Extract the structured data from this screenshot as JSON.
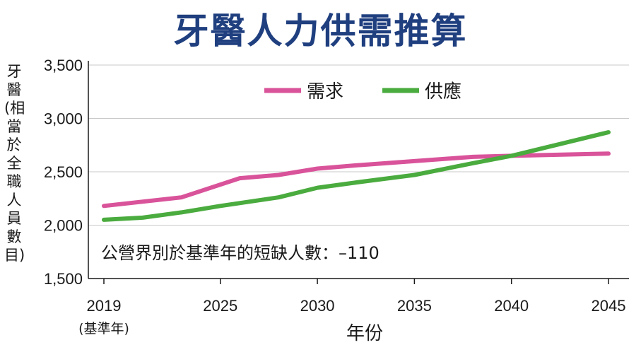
{
  "chart_data": {
    "type": "line",
    "title": "牙醫人力供需推算",
    "ylabel": "牙醫(相當於全職人員數目)",
    "xlabel": "年份",
    "ylim": [
      1500,
      3500
    ],
    "xlim": [
      2019,
      2045
    ],
    "y_ticks": [
      "1,500",
      "2,000",
      "2,500",
      "3,000",
      "3,500"
    ],
    "y_tick_values": [
      1500,
      2000,
      2500,
      3000,
      3500
    ],
    "x_ticks": [
      "2019",
      "2025",
      "2030",
      "2035",
      "2040",
      "2045"
    ],
    "x_tick_values": [
      2019,
      2025,
      2030,
      2035,
      2040,
      2045
    ],
    "x_ticks_sub": "(基準年)",
    "grid": "horizontal",
    "legend_position": "top",
    "annotation": "公營界別於基準年的短缺人數：–110",
    "series": [
      {
        "name": "需求",
        "color": "#d9539a",
        "x": [
          2019,
          2023,
          2026,
          2028,
          2030,
          2032,
          2035,
          2038,
          2040,
          2045
        ],
        "y": [
          2180,
          2260,
          2440,
          2470,
          2530,
          2560,
          2600,
          2640,
          2650,
          2670
        ]
      },
      {
        "name": "供應",
        "color": "#4aab3e",
        "x": [
          2019,
          2021,
          2023,
          2025,
          2028,
          2030,
          2032,
          2035,
          2038,
          2040,
          2045
        ],
        "y": [
          2050,
          2070,
          2120,
          2180,
          2260,
          2350,
          2400,
          2470,
          2580,
          2650,
          2870
        ]
      }
    ]
  }
}
